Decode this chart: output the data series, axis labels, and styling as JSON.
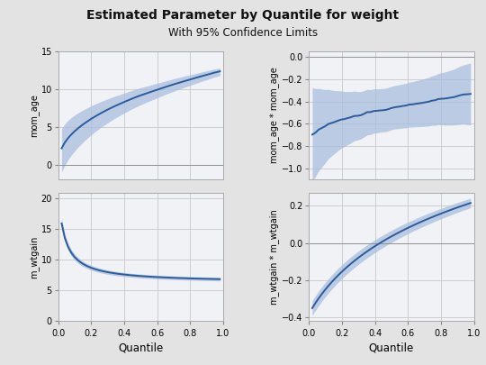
{
  "title": "Estimated Parameter by Quantile for weight",
  "subtitle": "With 95% Confidence Limits",
  "xlabel": "Quantile",
  "background_color": "#e3e3e3",
  "panel_color": "#f0f2f5",
  "line_color": "#2b5c9e",
  "band_color": "#a8bedd",
  "subplots": [
    {
      "ylabel": "mom_age",
      "ylim": [
        -2,
        15
      ],
      "yticks": [
        0,
        5,
        10,
        15
      ]
    },
    {
      "ylabel": "mom_age * mom_age",
      "ylim": [
        -1.1,
        0.05
      ],
      "yticks": [
        -1.0,
        -0.8,
        -0.6,
        -0.4,
        -0.2,
        0.0
      ]
    },
    {
      "ylabel": "m_wtgain",
      "ylim": [
        0,
        21
      ],
      "yticks": [
        0,
        5,
        10,
        15,
        20
      ]
    },
    {
      "ylabel": "m_wtgain * m_wtgain",
      "ylim": [
        -0.42,
        0.27
      ],
      "yticks": [
        -0.4,
        -0.2,
        0.0,
        0.2
      ]
    }
  ]
}
